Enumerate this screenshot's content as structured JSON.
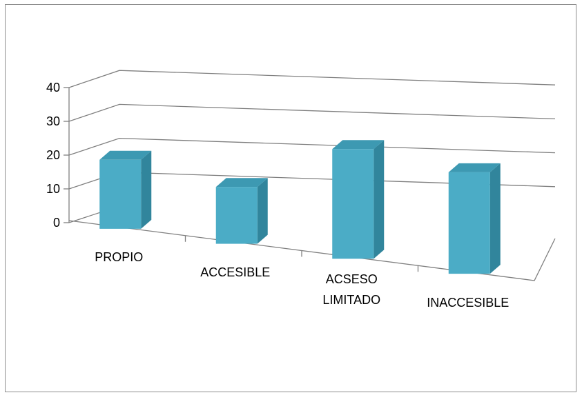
{
  "chart_data": {
    "type": "bar",
    "title": "",
    "xlabel": "",
    "ylabel": "",
    "categories": [
      "PROPIO",
      "ACCESIBLE",
      "ACSESO LIMITADO",
      "INACCESIBLE"
    ],
    "category_label_lines": [
      [
        "PROPIO"
      ],
      [
        "ACCESIBLE"
      ],
      [
        "ACSESO",
        "LIMITADO"
      ],
      [
        "INACCESIBLE"
      ]
    ],
    "values": [
      19,
      16,
      29,
      27
    ],
    "ylim": [
      0,
      40
    ],
    "yticks": [
      0,
      10,
      20,
      30,
      40
    ],
    "ytick_labels": [
      "0",
      "10",
      "20",
      "30",
      "40"
    ],
    "grid": true,
    "legend": "none",
    "style": "3d-column",
    "colors": {
      "bar_front": "#4bacc6",
      "bar_top": "#3d99b2",
      "bar_side": "#31859c",
      "gridline": "#7f7f7f",
      "frame": "#8c8c8c"
    }
  }
}
